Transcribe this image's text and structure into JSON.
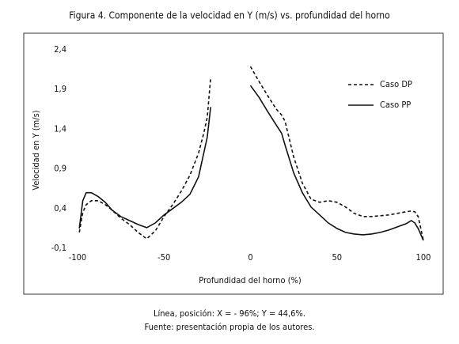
{
  "chart_data": {
    "type": "line",
    "title": "Figura 4. Componente de la velocidad en Y (m/s) vs. profundidad del horno",
    "xlabel": "Profundidad del horno (%)",
    "ylabel": "Velocidad en Y (m/s)",
    "notes": [
      "Línea, posición: X = - 96%; Y = 44,6%.",
      "Fuente: presentación propia de los autores."
    ],
    "x": [
      -99,
      -97,
      -95,
      -92,
      -88,
      -84,
      -80,
      -75,
      -70,
      -65,
      -60,
      -55,
      -50,
      -45,
      -40,
      -35,
      -30,
      -27,
      -25,
      -23,
      -10,
      0,
      5,
      10,
      15,
      18,
      20,
      25,
      30,
      35,
      40,
      45,
      50,
      55,
      60,
      65,
      70,
      75,
      80,
      85,
      90,
      93,
      95,
      97,
      100
    ],
    "series": [
      {
        "name": "Caso DP",
        "color": "#111111",
        "line_style": "dashed",
        "values": [
          0.1,
          0.35,
          0.45,
          0.5,
          0.5,
          0.45,
          0.38,
          0.28,
          0.2,
          0.1,
          0.02,
          0.12,
          0.3,
          0.45,
          0.62,
          0.82,
          1.1,
          1.35,
          1.55,
          2.05,
          null,
          2.19,
          2.0,
          1.82,
          1.65,
          1.58,
          1.5,
          1.05,
          0.72,
          0.52,
          0.48,
          0.5,
          0.48,
          0.42,
          0.34,
          0.3,
          0.3,
          0.31,
          0.32,
          0.34,
          0.36,
          0.37,
          0.36,
          0.3,
          0.0
        ]
      },
      {
        "name": "Caso PP",
        "color": "#111111",
        "line_style": "solid",
        "values": [
          0.15,
          0.5,
          0.6,
          0.6,
          0.55,
          0.48,
          0.38,
          0.3,
          0.25,
          0.2,
          0.16,
          0.22,
          0.32,
          0.4,
          0.48,
          0.58,
          0.8,
          1.1,
          1.3,
          1.68,
          null,
          1.95,
          1.8,
          1.62,
          1.45,
          1.35,
          1.2,
          0.85,
          0.6,
          0.42,
          0.32,
          0.22,
          0.15,
          0.1,
          0.08,
          0.07,
          0.08,
          0.1,
          0.13,
          0.17,
          0.21,
          0.25,
          0.22,
          0.15,
          0.0
        ]
      }
    ],
    "xlim": [
      -100,
      100
    ],
    "xticks": [
      -100,
      -50,
      0,
      50,
      100
    ],
    "ylim": [
      -0.1,
      2.4
    ],
    "yticks": [
      {
        "value": -0.1,
        "label": "-0,1"
      },
      {
        "value": 0.4,
        "label": "0,4"
      },
      {
        "value": 0.9,
        "label": "0,9"
      },
      {
        "value": 1.4,
        "label": "1,4"
      },
      {
        "value": 1.9,
        "label": "1,9"
      },
      {
        "value": 2.4,
        "label": "2,4"
      }
    ],
    "grid": false,
    "legend": "upper-right"
  }
}
